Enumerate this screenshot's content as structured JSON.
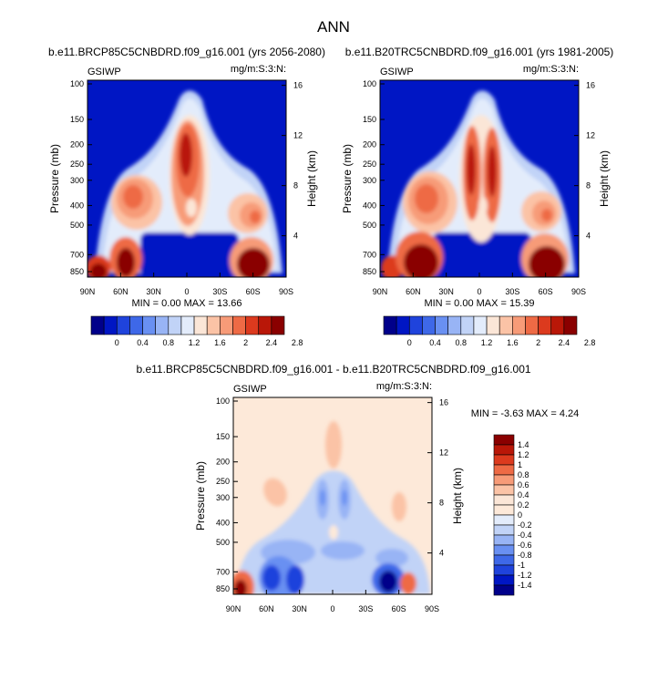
{
  "figure": {
    "title": "ANN",
    "panels": [
      {
        "id": "case",
        "title": "b.e11.BRCP85C5CNBDRD.f09_g16.001 (yrs 2056-2080)",
        "left_label": "GSIWP",
        "right_label": "mg/m:S:3:N:",
        "stats": "MIN =   0.00  MAX =  13.66"
      },
      {
        "id": "control",
        "title": "b.e11.B20TRC5CNBDRD.f09_g16.001 (yrs 1981-2005)",
        "left_label": "GSIWP",
        "right_label": "mg/m:S:3:N:",
        "stats": "MIN =   0.00  MAX =  15.39"
      },
      {
        "id": "diff",
        "title": "b.e11.BRCP85C5CNBDRD.f09_g16.001 - b.e11.B20TRC5CNBDRD.f09_g16.001",
        "left_label": "GSIWP",
        "right_label": "mg/m:S:3:N:",
        "stats": "MIN =  -3.63  MAX =   4.24"
      }
    ],
    "axes": {
      "xlabel": "",
      "ylabel": "Pressure (mb)",
      "y2label": "Height (km)",
      "xticks": [
        "90N",
        "60N",
        "30N",
        "0",
        "30S",
        "60S",
        "90S"
      ],
      "yticks": [
        "100",
        "150",
        "200",
        "250",
        "300",
        "400",
        "500",
        "700",
        "850"
      ],
      "y2ticks": [
        "16",
        "12",
        "8",
        "4"
      ]
    },
    "colorbars": {
      "absolute": {
        "labels": [
          "0",
          "0.4",
          "0.8",
          "1.2",
          "1.6",
          "2",
          "2.4",
          "2.8"
        ],
        "colors": [
          "#00008a",
          "#0016c4",
          "#1f43dc",
          "#3e68e8",
          "#6990f2",
          "#98b4f5",
          "#c1d3f7",
          "#e3ecfb",
          "#fbe6d7",
          "#fbc3a6",
          "#f79b78",
          "#ee6a45",
          "#dc3a1e",
          "#b91708",
          "#8a0000"
        ]
      },
      "difference": {
        "labels": [
          "1.4",
          "1.2",
          "1",
          "0.8",
          "0.6",
          "0.4",
          "0.2",
          "0",
          "-0.2",
          "-0.4",
          "-0.6",
          "-0.8",
          "-1",
          "-1.2",
          "-1.4"
        ],
        "colors": [
          "#8a0000",
          "#b91708",
          "#dc3a1e",
          "#ee6a45",
          "#f79b78",
          "#fbc3a6",
          "#fbe6d7",
          "#fde9d9",
          "#e3ecfb",
          "#c1d3f7",
          "#98b4f5",
          "#6990f2",
          "#3e68e8",
          "#1f43dc",
          "#0016c4",
          "#00008a"
        ]
      }
    }
  },
  "chart_data": [
    {
      "type": "heatmap",
      "title": "b.e11.BRCP85C5CNBDRD.f09_g16.001 (yrs 2056-2080)",
      "xlabel": "",
      "ylabel": "Pressure (mb)",
      "y2label": "Height (km)",
      "x_range": [
        "90N",
        "90S"
      ],
      "y_range": [
        850,
        100
      ],
      "y_scale": "log",
      "min": 0.0,
      "max": 13.66,
      "levels": [
        0,
        0.2,
        0.4,
        0.6,
        0.8,
        1.0,
        1.2,
        1.4,
        1.6,
        1.8,
        2.0,
        2.2,
        2.4,
        2.6,
        2.8
      ]
    },
    {
      "type": "heatmap",
      "title": "b.e11.B20TRC5CNBDRD.f09_g16.001 (yrs 1981-2005)",
      "xlabel": "",
      "ylabel": "Pressure (mb)",
      "y2label": "Height (km)",
      "x_range": [
        "90N",
        "90S"
      ],
      "y_range": [
        850,
        100
      ],
      "y_scale": "log",
      "min": 0.0,
      "max": 15.39,
      "levels": [
        0,
        0.2,
        0.4,
        0.6,
        0.8,
        1.0,
        1.2,
        1.4,
        1.6,
        1.8,
        2.0,
        2.2,
        2.4,
        2.6,
        2.8
      ]
    },
    {
      "type": "heatmap",
      "title": "b.e11.BRCP85C5CNBDRD.f09_g16.001 - b.e11.B20TRC5CNBDRD.f09_g16.001",
      "xlabel": "",
      "ylabel": "Pressure (mb)",
      "y2label": "Height (km)",
      "x_range": [
        "90N",
        "90S"
      ],
      "y_range": [
        850,
        100
      ],
      "y_scale": "log",
      "min": -3.63,
      "max": 4.24,
      "levels": [
        -1.4,
        -1.2,
        -1.0,
        -0.8,
        -0.6,
        -0.4,
        -0.2,
        0,
        0.2,
        0.4,
        0.6,
        0.8,
        1.0,
        1.2,
        1.4
      ]
    }
  ]
}
